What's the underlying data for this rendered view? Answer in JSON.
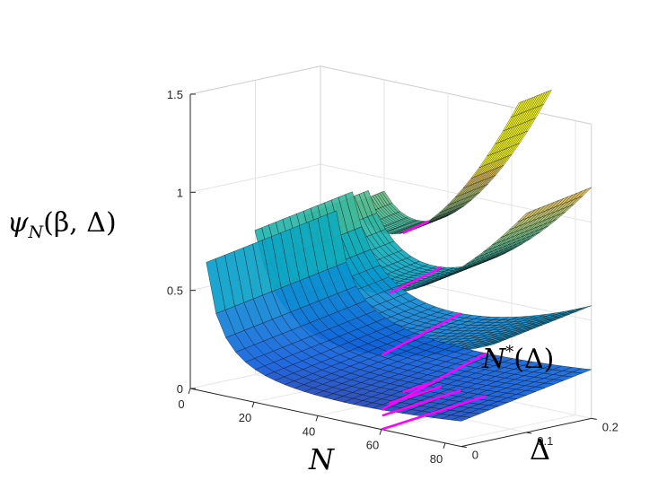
{
  "chart_data": {
    "type": "surface",
    "title": "",
    "zlabel": {
      "fn": "ψ",
      "sub": "N",
      "args": "(β, Δ)"
    },
    "xlabel": "N",
    "ylabel": "Δ",
    "annotation": {
      "base": "N",
      "sup": "*",
      "args": "(Δ)"
    },
    "x_ticks": [
      "0",
      "20",
      "40",
      "60",
      "80"
    ],
    "y_ticks": [
      "0",
      "0.1",
      "0.2"
    ],
    "z_ticks": [
      "0",
      "0.5",
      "1",
      "1.5"
    ],
    "xlim": [
      0,
      85
    ],
    "ylim": [
      0,
      0.2
    ],
    "zlim": [
      0,
      1.5
    ],
    "grid": true,
    "colormap": "parula",
    "curve_color": "#ff00ff",
    "surfaces": [
      {
        "delta": 0.0,
        "n_start": 5,
        "n_star": 60,
        "min_value": 0.1
      },
      {
        "delta": 0.05,
        "n_start": 10,
        "n_star": 50,
        "min_value": 0.28
      },
      {
        "delta": 0.1,
        "n_start": 15,
        "n_star": 42,
        "min_value": 0.5
      },
      {
        "delta": 0.15,
        "n_start": 20,
        "n_star": 36,
        "min_value": 0.72
      }
    ]
  }
}
